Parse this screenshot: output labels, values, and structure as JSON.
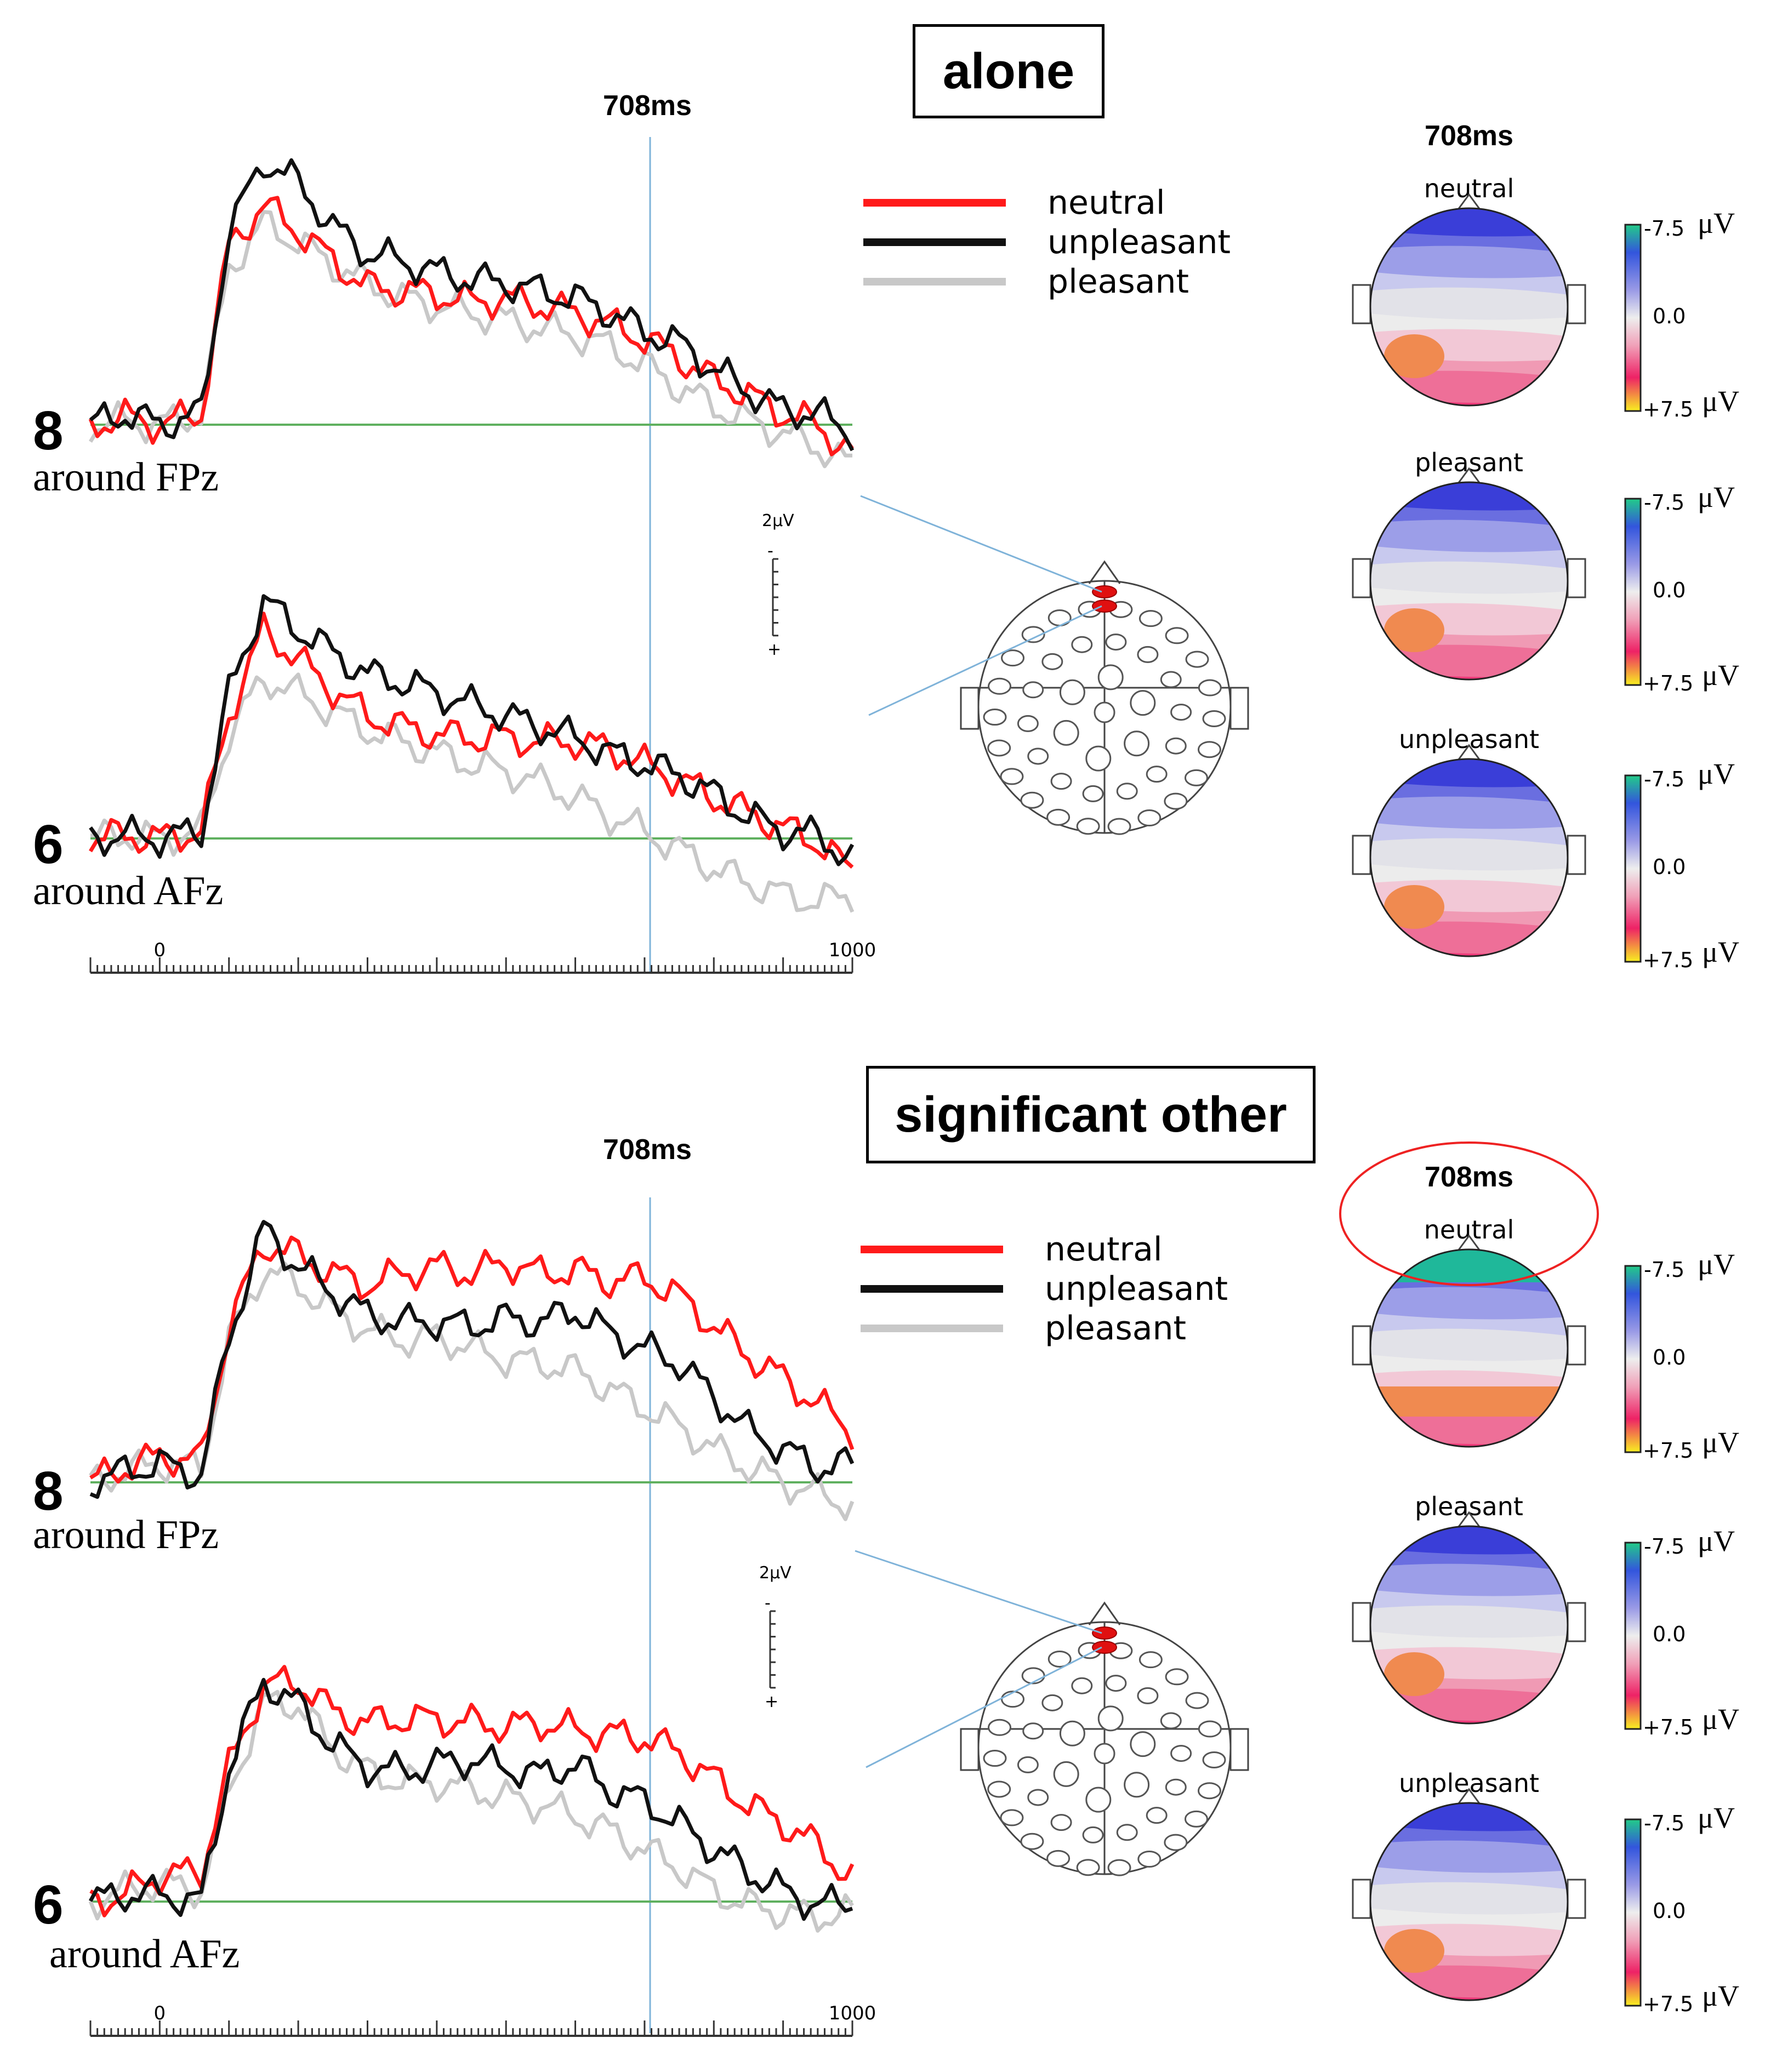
{
  "colors": {
    "neutral": "#ff1a1a",
    "unpleasant": "#111111",
    "pleasant": "#c8c8c8",
    "baseline": "#5fb05f",
    "marker": "#7fb3d9"
  },
  "legend": [
    {
      "key": "neutral",
      "label": "neutral"
    },
    {
      "key": "unpleasant",
      "label": "unpleasant"
    },
    {
      "key": "pleasant",
      "label": "pleasant"
    }
  ],
  "chart_data": [
    {
      "type": "line",
      "title": "alone",
      "marker_label": "708ms",
      "marker_x": 708,
      "x_ticks": [
        "0",
        "1000"
      ],
      "xlim": [
        -100,
        1000
      ],
      "scale_label": "2μV",
      "scale_minus": "-",
      "scale_plus": "+",
      "channels": [
        {
          "number": "8",
          "label": "around FPz",
          "series": [
            {
              "name": "neutral",
              "x": [
                -100,
                -50,
                0,
                60,
                100,
                150,
                200,
                250,
                300,
                350,
                400,
                450,
                500,
                550,
                600,
                650,
                700,
                750,
                800,
                850,
                900,
                950,
                1000
              ],
              "y": [
                0,
                0.2,
                0,
                0.3,
                4.8,
                5.9,
                5.2,
                4.4,
                3.7,
                3.6,
                3.5,
                3.3,
                3.4,
                3.2,
                3.0,
                2.7,
                2.3,
                1.8,
                1.2,
                0.8,
                0.3,
                0,
                -0.8
              ]
            },
            {
              "name": "unpleasant",
              "x": [
                -100,
                -50,
                0,
                60,
                100,
                150,
                200,
                250,
                300,
                350,
                400,
                450,
                500,
                550,
                600,
                650,
                700,
                750,
                800,
                850,
                900,
                950,
                1000
              ],
              "y": [
                0,
                0.3,
                0,
                0.3,
                5.2,
                7.1,
                6.5,
                5.3,
                4.6,
                4.4,
                4.1,
                3.9,
                3.8,
                3.6,
                3.4,
                3.0,
                2.5,
                2.2,
                1.5,
                0.9,
                0.4,
                0.3,
                -0.2
              ]
            },
            {
              "name": "pleasant",
              "x": [
                -100,
                -50,
                0,
                60,
                100,
                150,
                200,
                250,
                300,
                350,
                400,
                450,
                500,
                550,
                600,
                650,
                700,
                750,
                800,
                850,
                900,
                950,
                1000
              ],
              "y": [
                0,
                0.1,
                0,
                0.3,
                4.2,
                5.4,
                4.9,
                4.3,
                3.8,
                3.4,
                3.2,
                3.0,
                2.8,
                2.6,
                2.4,
                2.1,
                1.6,
                1.0,
                0.5,
                0.1,
                -0.2,
                -0.6,
                -1.1
              ]
            }
          ]
        },
        {
          "number": "6",
          "label": "around AFz",
          "series": [
            {
              "name": "neutral",
              "x": [
                -100,
                -50,
                0,
                60,
                100,
                150,
                200,
                250,
                300,
                350,
                400,
                450,
                500,
                550,
                600,
                650,
                700,
                750,
                800,
                850,
                900,
                950,
                1000
              ],
              "y": [
                0,
                0.1,
                0,
                0.2,
                3.3,
                5.6,
                4.8,
                4.0,
                3.3,
                3.0,
                2.8,
                2.7,
                2.7,
                2.6,
                2.6,
                2.4,
                2.0,
                1.6,
                1.1,
                0.7,
                0.3,
                -0.1,
                -0.9
              ]
            },
            {
              "name": "unpleasant",
              "x": [
                -100,
                -50,
                0,
                60,
                100,
                150,
                200,
                250,
                300,
                350,
                400,
                450,
                500,
                550,
                600,
                650,
                700,
                750,
                800,
                850,
                900,
                950,
                1000
              ],
              "y": [
                0,
                0.1,
                0,
                0.2,
                3.9,
                6.4,
                5.6,
                5.0,
                4.4,
                4.2,
                3.9,
                3.6,
                3.3,
                3.0,
                2.7,
                2.3,
                2.0,
                1.7,
                1.2,
                0.6,
                0.2,
                0.1,
                -0.6
              ]
            },
            {
              "name": "pleasant",
              "x": [
                -100,
                -50,
                0,
                60,
                100,
                150,
                200,
                250,
                300,
                350,
                400,
                450,
                500,
                550,
                600,
                650,
                700,
                750,
                800,
                850,
                900,
                950,
                1000
              ],
              "y": [
                0,
                0.1,
                0,
                0.2,
                2.8,
                4.3,
                3.9,
                3.4,
                2.9,
                2.6,
                2.3,
                2.0,
                1.8,
                1.5,
                1.1,
                0.6,
                0.2,
                -0.3,
                -0.8,
                -1.2,
                -1.5,
                -1.7,
                -1.5
              ]
            }
          ]
        }
      ],
      "topomaps": [
        {
          "condition": "neutral"
        },
        {
          "condition": "pleasant"
        },
        {
          "condition": "unpleasant"
        }
      ]
    },
    {
      "type": "line",
      "title": "significant other",
      "marker_label": "708ms",
      "marker_x": 708,
      "x_ticks": [
        "0",
        "1000"
      ],
      "xlim": [
        -100,
        1000
      ],
      "scale_label": "2μV",
      "scale_minus": "-",
      "scale_plus": "+",
      "channels": [
        {
          "number": "8",
          "label": "around FPz",
          "series": [
            {
              "name": "neutral",
              "x": [
                -100,
                -50,
                0,
                60,
                100,
                150,
                200,
                250,
                300,
                350,
                400,
                450,
                500,
                550,
                600,
                650,
                700,
                750,
                800,
                850,
                900,
                950,
                1000
              ],
              "y": [
                0,
                0.4,
                0.7,
                0.6,
                4.2,
                6.4,
                6.1,
                5.6,
                5.3,
                5.6,
                5.8,
                5.6,
                5.9,
                5.6,
                5.7,
                5.4,
                5.5,
                5.0,
                4.2,
                3.4,
                2.8,
                2.1,
                1.4
              ]
            },
            {
              "name": "unpleasant",
              "x": [
                -100,
                -50,
                0,
                60,
                100,
                150,
                200,
                250,
                300,
                350,
                400,
                450,
                500,
                550,
                600,
                650,
                700,
                750,
                800,
                850,
                900,
                950,
                1000
              ],
              "y": [
                0,
                0.3,
                0.5,
                0.2,
                3.9,
                6.8,
                5.8,
                5.1,
                4.5,
                4.3,
                4.3,
                4.2,
                4.4,
                4.3,
                4.6,
                4.0,
                3.6,
                3.2,
                2.3,
                1.4,
                0.9,
                0.4,
                0.5
              ]
            },
            {
              "name": "pleasant",
              "x": [
                -100,
                -50,
                0,
                60,
                100,
                150,
                200,
                250,
                300,
                350,
                400,
                450,
                500,
                550,
                600,
                650,
                700,
                750,
                800,
                850,
                900,
                950,
                1000
              ],
              "y": [
                0,
                0.3,
                0.5,
                0.4,
                3.8,
                5.7,
                5.3,
                4.6,
                4.1,
                3.8,
                3.9,
                3.6,
                3.3,
                3.2,
                3.0,
                2.5,
                2.0,
                1.5,
                0.9,
                0.4,
                0,
                -0.3,
                -0.6
              ]
            }
          ]
        },
        {
          "number": "6",
          "label": "around AFz",
          "series": [
            {
              "name": "neutral",
              "x": [
                -100,
                -50,
                0,
                60,
                100,
                150,
                200,
                250,
                300,
                350,
                400,
                450,
                500,
                550,
                600,
                650,
                700,
                750,
                800,
                850,
                900,
                950,
                1000
              ],
              "y": [
                0,
                0.2,
                0.7,
                0.8,
                3.6,
                5.8,
                5.9,
                5.1,
                4.8,
                4.9,
                4.9,
                4.8,
                4.7,
                4.8,
                4.6,
                4.5,
                4.4,
                4.0,
                3.3,
                2.6,
                2.1,
                1.5,
                0.6
              ]
            },
            {
              "name": "unpleasant",
              "x": [
                -100,
                -50,
                0,
                60,
                100,
                150,
                200,
                250,
                300,
                350,
                400,
                450,
                500,
                550,
                600,
                650,
                700,
                750,
                800,
                850,
                900,
                950,
                1000
              ],
              "y": [
                0,
                0.2,
                0.2,
                0,
                3.6,
                5.9,
                5.3,
                4.2,
                3.6,
                3.5,
                3.7,
                3.8,
                3.6,
                3.4,
                3.7,
                3.0,
                2.7,
                2.1,
                1.4,
                0.8,
                0.3,
                -0.1,
                0
              ]
            },
            {
              "name": "pleasant",
              "x": [
                -100,
                -50,
                0,
                60,
                100,
                150,
                200,
                250,
                300,
                350,
                400,
                450,
                500,
                550,
                600,
                650,
                700,
                750,
                800,
                850,
                900,
                950,
                1000
              ],
              "y": [
                0,
                0.3,
                0.5,
                0.3,
                3.0,
                5.3,
                5.3,
                4.1,
                3.5,
                3.2,
                3.2,
                3.0,
                2.8,
                2.6,
                2.3,
                1.9,
                1.4,
                0.9,
                0.3,
                -0.1,
                -0.3,
                -0.4,
                -0.3
              ]
            }
          ]
        }
      ],
      "topomaps": [
        {
          "condition": "neutral",
          "highlighted": true
        },
        {
          "condition": "pleasant"
        },
        {
          "condition": "unpleasant"
        }
      ]
    }
  ],
  "topomap_header": "708ms",
  "colorbar": {
    "min_label": "-7.5",
    "mid_label": "0.0",
    "max_label": "+7.5",
    "unit": "μV"
  }
}
